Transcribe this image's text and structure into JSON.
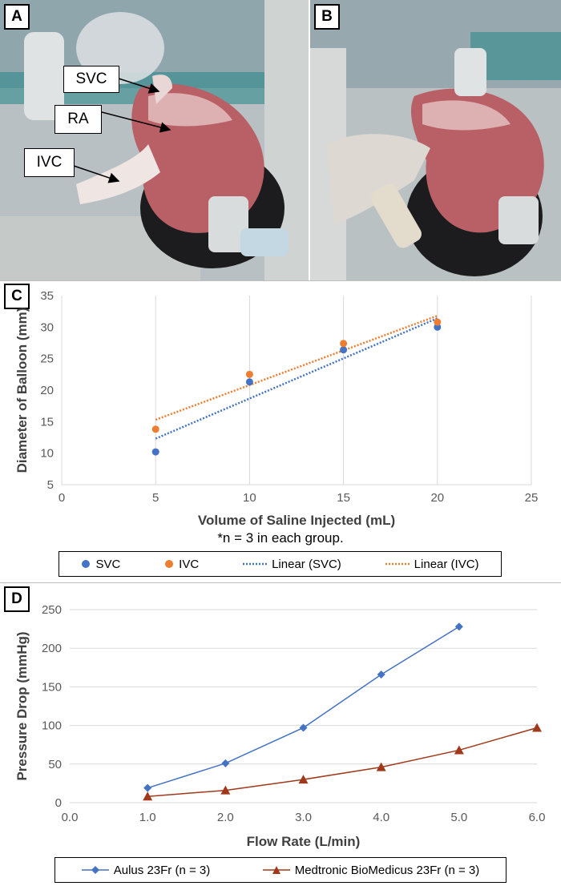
{
  "panel_labels": {
    "a": "A",
    "b": "B",
    "c": "C",
    "d": "D"
  },
  "photo_labels": {
    "svc": "SVC",
    "ra": "RA",
    "ivc": "IVC"
  },
  "colors": {
    "blue": "#4472c4",
    "orange": "#ed7d31",
    "brown": "#a0391b"
  },
  "chart_c_note": "*n = 3 in each group.",
  "chart_data": [
    {
      "type": "scatter",
      "xlabel": "Volume of Saline Injected (mL)",
      "ylabel": "Diameter of Balloon (mm)",
      "xlim": [
        0,
        25
      ],
      "ylim": [
        5,
        35
      ],
      "x_ticks": [
        "0",
        "5",
        "10",
        "15",
        "20",
        "25"
      ],
      "y_ticks": [
        "5",
        "10",
        "15",
        "20",
        "25",
        "30",
        "35"
      ],
      "grid": "vertical",
      "legend_position": "bottom",
      "series": [
        {
          "name": "SVC",
          "x": [
            5,
            10,
            15,
            20
          ],
          "y": [
            10.2,
            21.3,
            26.4,
            30.0
          ],
          "color": "#4472c4",
          "marker": "circle"
        },
        {
          "name": "IVC",
          "x": [
            5,
            10,
            15,
            20
          ],
          "y": [
            13.8,
            22.5,
            27.4,
            30.8
          ],
          "color": "#ed7d31",
          "marker": "circle"
        }
      ],
      "trendlines": [
        {
          "name": "Linear (SVC)",
          "x": [
            5,
            20
          ],
          "y": [
            12.3,
            31.4
          ],
          "color": "#4472c4"
        },
        {
          "name": "Linear (IVC)",
          "x": [
            5,
            20
          ],
          "y": [
            15.3,
            31.8
          ],
          "color": "#ed7d31"
        }
      ]
    },
    {
      "type": "line",
      "xlabel": "Flow Rate (L/min)",
      "ylabel": "Pressure Drop (mmHg)",
      "xlim": [
        0,
        6
      ],
      "ylim": [
        0,
        250
      ],
      "x_ticks": [
        "0.0",
        "1.0",
        "2.0",
        "3.0",
        "4.0",
        "5.0",
        "6.0"
      ],
      "y_ticks": [
        "0",
        "50",
        "100",
        "150",
        "200",
        "250"
      ],
      "grid": "horizontal",
      "legend_position": "bottom",
      "series": [
        {
          "name": "Aulus 23Fr (n = 3)",
          "x": [
            1,
            2,
            3,
            4,
            5
          ],
          "y": [
            19,
            51,
            97,
            166,
            228
          ],
          "color": "#4472c4",
          "marker": "diamond"
        },
        {
          "name": "Medtronic BioMedicus 23Fr (n = 3)",
          "x": [
            1,
            2,
            3,
            4,
            5,
            6
          ],
          "y": [
            8,
            16,
            30,
            46,
            68,
            97
          ],
          "color": "#a0391b",
          "marker": "triangle"
        }
      ]
    }
  ]
}
